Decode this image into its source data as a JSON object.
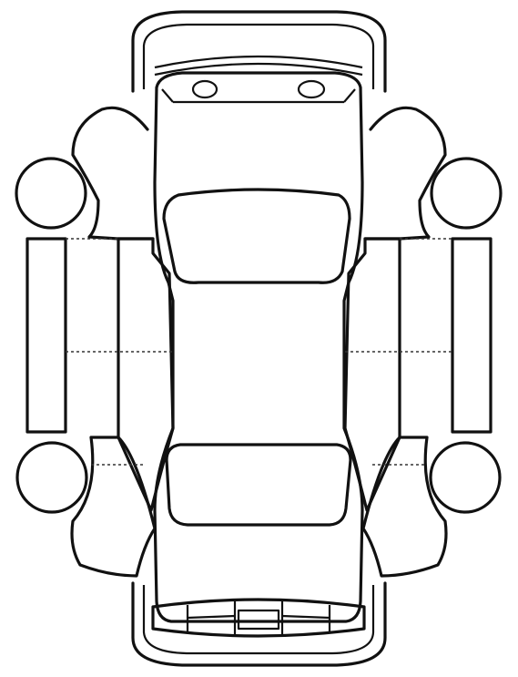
{
  "diagram": {
    "kind": "vehicle-damage-inspection-outline",
    "views": [
      "top",
      "left-side-unfolded",
      "right-side-unfolded",
      "front-bumper",
      "rear-bumper"
    ],
    "colors": {
      "line": "#111111",
      "background": "#ffffff"
    }
  }
}
